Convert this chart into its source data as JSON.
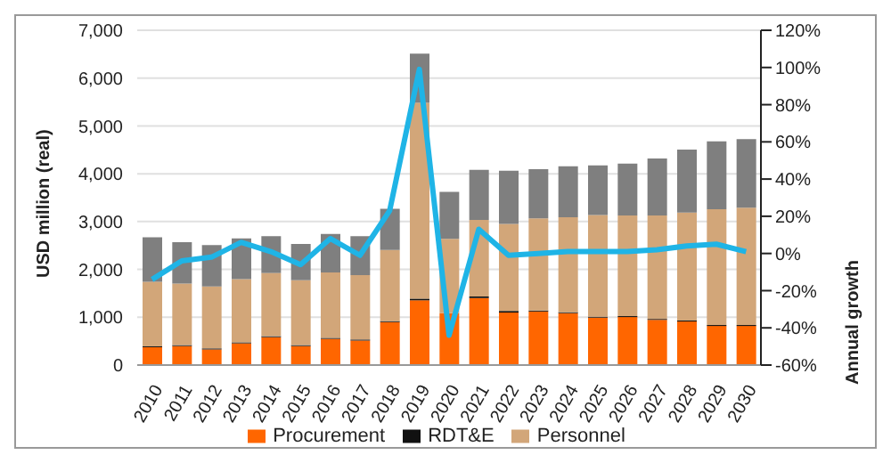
{
  "chart_data": {
    "type": "bar",
    "stacked": true,
    "ylabel": "USD million (real)",
    "y2label": "Annual growth",
    "categories": [
      "2010",
      "2011",
      "2012",
      "2013",
      "2014",
      "2015",
      "2016",
      "2017",
      "2018",
      "2019",
      "2020",
      "2021",
      "2022",
      "2023",
      "2024",
      "2025",
      "2026",
      "2027",
      "2028",
      "2029",
      "2030"
    ],
    "series": [
      {
        "name": "Procurement",
        "color": "#ff6600",
        "values": [
          373,
          397,
          327,
          455,
          583,
          397,
          548,
          513,
          898,
          1354,
          1085,
          1400,
          1097,
          1120,
          1085,
          992,
          1003,
          945,
          910,
          817,
          817
        ]
      },
      {
        "name": "RDT&E",
        "color": "#111111",
        "values": [
          20,
          20,
          20,
          20,
          20,
          20,
          20,
          20,
          20,
          35,
          null,
          35,
          35,
          20,
          20,
          20,
          20,
          20,
          20,
          20,
          20
        ]
      },
      {
        "name": "Personnel",
        "color": "#d2a679",
        "values": [
          1346,
          1287,
          1298,
          1322,
          1322,
          1357,
          1369,
          1346,
          1486,
          4095,
          1555,
          1599,
          1820,
          1929,
          1987,
          2127,
          2104,
          2162,
          2256,
          2419,
          2453
        ]
      },
      {
        "color": "#7f7f7f",
        "values": [
          933,
          863,
          864,
          852,
          770,
          758,
          805,
          816,
          863,
          1027,
          980,
          1050,
          1109,
          1027,
          1062,
          1038,
          1085,
          1190,
          1318,
          1423,
          1436
        ]
      },
      {
        "type": "line",
        "axis": "y2",
        "color": "#1fb4e6",
        "values": [
          -14,
          -4,
          -2,
          6,
          1,
          -6,
          8,
          -1,
          23,
          99,
          -44,
          13,
          -1,
          0,
          1,
          1,
          1,
          2,
          4,
          5,
          1
        ]
      }
    ],
    "ylim": [
      0,
      7000
    ],
    "yticks": [
      {
        "value": 0,
        "label": "0"
      },
      {
        "value": 1000,
        "label": "1,000"
      },
      {
        "value": 2000,
        "label": "2,000"
      },
      {
        "value": 3000,
        "label": "3,000"
      },
      {
        "value": 4000,
        "label": "4,000"
      },
      {
        "value": 5000,
        "label": "5,000"
      },
      {
        "value": 6000,
        "label": "6,000"
      },
      {
        "value": 7000,
        "label": "7,000"
      }
    ],
    "y2lim": [
      -60,
      120
    ],
    "y2ticks": [
      {
        "value": -60,
        "label": "-60%"
      },
      {
        "value": -40,
        "label": "-40%"
      },
      {
        "value": -20,
        "label": "-20%"
      },
      {
        "value": 0,
        "label": "0%"
      },
      {
        "value": 20,
        "label": "20%"
      },
      {
        "value": 40,
        "label": "40%"
      },
      {
        "value": 60,
        "label": "60%"
      },
      {
        "value": 80,
        "label": "80%"
      },
      {
        "value": 100,
        "label": "100%"
      },
      {
        "value": 120,
        "label": "120%"
      }
    ],
    "grid": "y",
    "legend": "bottom",
    "marker": "none",
    "line_style": "solid"
  }
}
